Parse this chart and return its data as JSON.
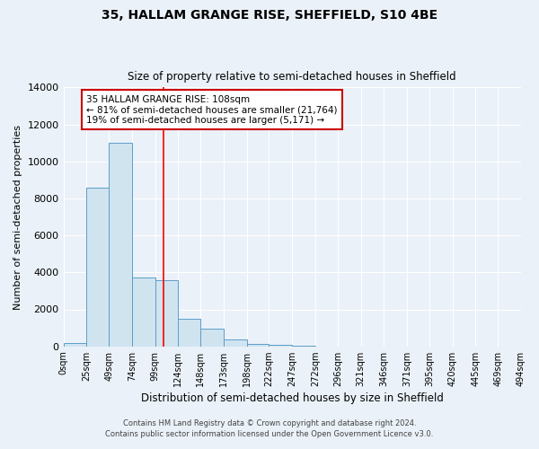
{
  "title1": "35, HALLAM GRANGE RISE, SHEFFIELD, S10 4BE",
  "title2": "Size of property relative to semi-detached houses in Sheffield",
  "xlabel": "Distribution of semi-detached houses by size in Sheffield",
  "ylabel": "Number of semi-detached properties",
  "annotation_title": "35 HALLAM GRANGE RISE: 108sqm",
  "annotation_line1": "← 81% of semi-detached houses are smaller (21,764)",
  "annotation_line2": "19% of semi-detached houses are larger (5,171) →",
  "footer1": "Contains HM Land Registry data © Crown copyright and database right 2024.",
  "footer2": "Contains public sector information licensed under the Open Government Licence v3.0.",
  "bar_edges": [
    0,
    25,
    49,
    74,
    99,
    124,
    148,
    173,
    198,
    222,
    247,
    272,
    296,
    321,
    346,
    371,
    395,
    420,
    445,
    469,
    494
  ],
  "bar_heights": [
    200,
    8600,
    11000,
    3700,
    3600,
    1500,
    950,
    350,
    150,
    100,
    50,
    0,
    0,
    0,
    0,
    0,
    0,
    0,
    0,
    0
  ],
  "tick_labels": [
    "0sqm",
    "25sqm",
    "49sqm",
    "74sqm",
    "99sqm",
    "124sqm",
    "148sqm",
    "173sqm",
    "198sqm",
    "222sqm",
    "247sqm",
    "272sqm",
    "296sqm",
    "321sqm",
    "346sqm",
    "371sqm",
    "395sqm",
    "420sqm",
    "445sqm",
    "469sqm",
    "494sqm"
  ],
  "bar_color": "#d0e4f0",
  "bar_edge_color": "#5b9ec9",
  "red_line_x": 108,
  "ylim": [
    0,
    14000
  ],
  "yticks": [
    0,
    2000,
    4000,
    6000,
    8000,
    10000,
    12000,
    14000
  ],
  "background_color": "#eaf1f8",
  "grid_color": "#ffffff",
  "annotation_box_facecolor": "#ffffff",
  "annotation_box_edgecolor": "#cc0000"
}
